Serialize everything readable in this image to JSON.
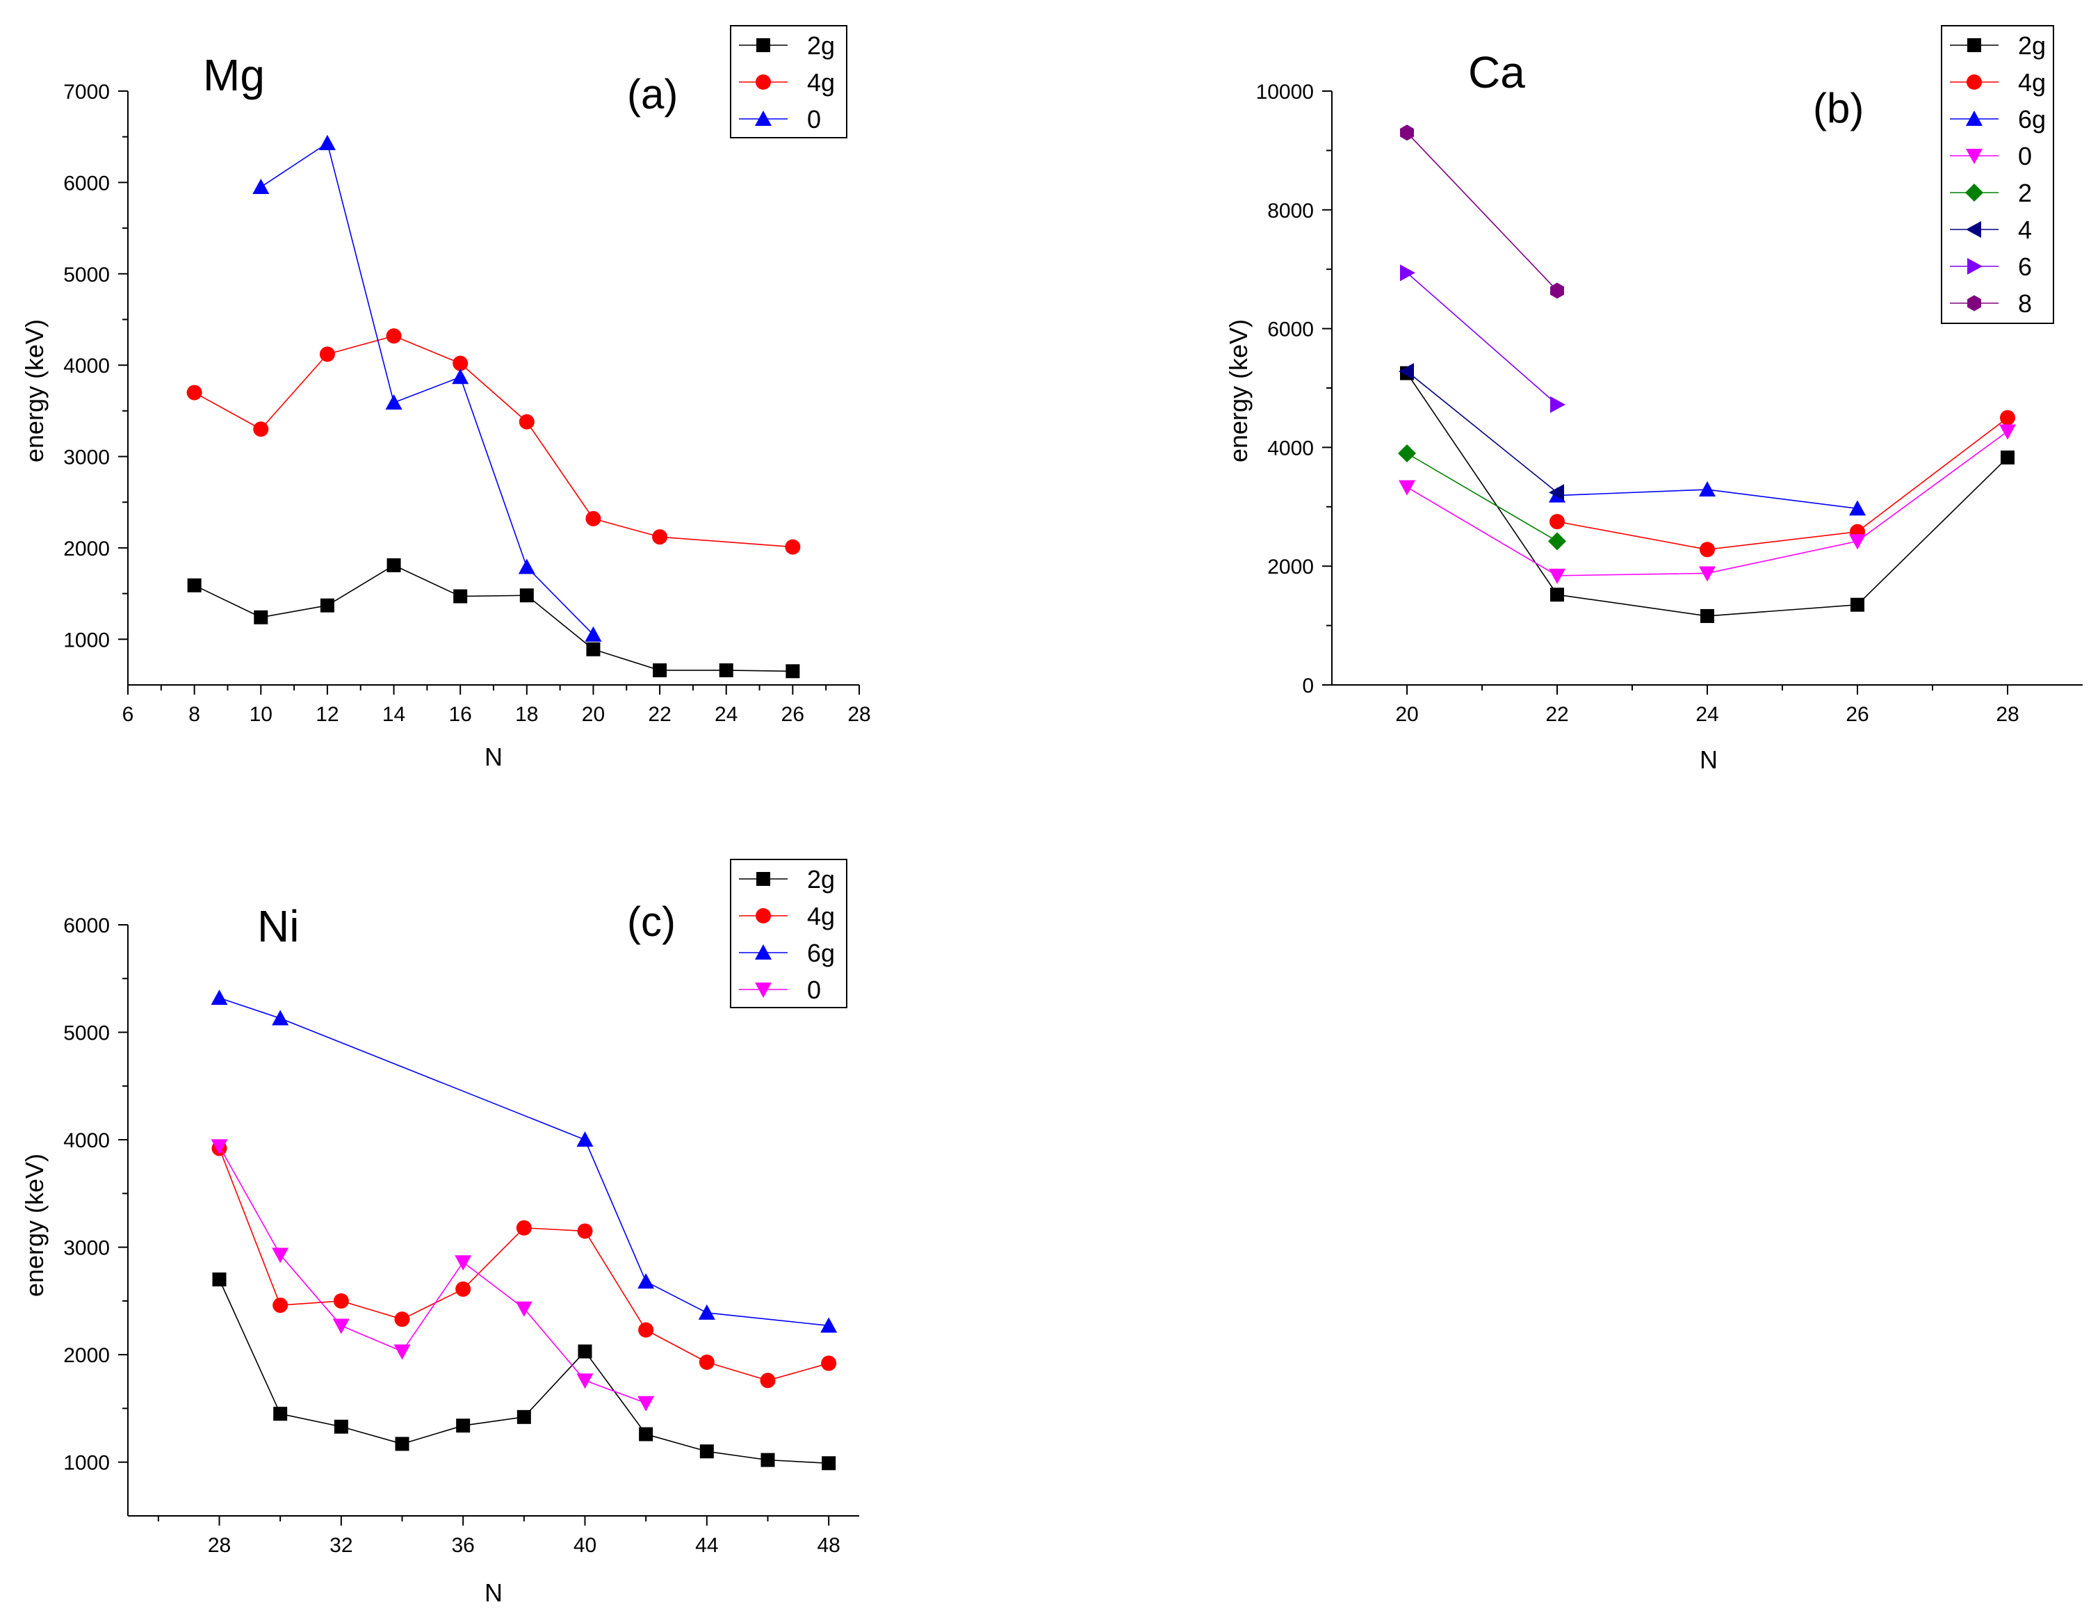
{
  "chart_data": [
    {
      "type": "line",
      "panel": "a",
      "title": "Mg",
      "panel_label": "(a)",
      "xlabel": "N",
      "ylabel": "energy (keV)",
      "xlim": [
        6,
        28
      ],
      "ylim": [
        500,
        7000
      ],
      "x_ticks": [
        6,
        8,
        10,
        12,
        14,
        16,
        18,
        20,
        22,
        24,
        26,
        28
      ],
      "y_ticks": [
        1000,
        2000,
        3000,
        4000,
        5000,
        6000,
        7000
      ],
      "legend_position": "top-right",
      "series": [
        {
          "name": "2g",
          "color": "#000000",
          "marker": "square",
          "points": [
            [
              8,
              1590
            ],
            [
              10,
              1240
            ],
            [
              12,
              1370
            ],
            [
              14,
              1810
            ],
            [
              16,
              1470
            ],
            [
              18,
              1480
            ],
            [
              20,
              890
            ],
            [
              22,
              660
            ],
            [
              24,
              660
            ],
            [
              26,
              650
            ]
          ]
        },
        {
          "name": "4g",
          "color": "#ff0000",
          "marker": "circle",
          "points": [
            [
              8,
              3700
            ],
            [
              10,
              3300
            ],
            [
              12,
              4120
            ],
            [
              14,
              4320
            ],
            [
              16,
              4020
            ],
            [
              18,
              3380
            ],
            [
              20,
              2320
            ],
            [
              22,
              2120
            ],
            [
              26,
              2010
            ]
          ]
        },
        {
          "name": "0",
          "color": "#0000ff",
          "marker": "triangle-up",
          "points": [
            [
              10,
              5950
            ],
            [
              12,
              6430
            ],
            [
              14,
              3590
            ],
            [
              16,
              3870
            ],
            [
              18,
              1790
            ],
            [
              20,
              1050
            ]
          ]
        }
      ]
    },
    {
      "type": "line",
      "panel": "b",
      "title": "Ca",
      "panel_label": "(b)",
      "xlabel": "N",
      "ylabel": "energy (keV)",
      "xlim": [
        19,
        29
      ],
      "ylim": [
        0,
        10000
      ],
      "x_ticks": [
        20,
        22,
        24,
        26,
        28
      ],
      "y_ticks": [
        0,
        2000,
        4000,
        6000,
        8000,
        10000
      ],
      "legend_position": "top-right",
      "series": [
        {
          "name": "2g",
          "color": "#000000",
          "marker": "square",
          "points": [
            [
              20,
              5250
            ],
            [
              22,
              1520
            ],
            [
              24,
              1160
            ],
            [
              26,
              1350
            ],
            [
              28,
              3830
            ]
          ]
        },
        {
          "name": "4g",
          "color": "#ff0000",
          "marker": "circle",
          "points": [
            [
              22,
              2750
            ],
            [
              24,
              2280
            ],
            [
              26,
              2580
            ],
            [
              28,
              4500
            ]
          ]
        },
        {
          "name": "6g",
          "color": "#0000ff",
          "marker": "triangle-up",
          "points": [
            [
              22,
              3190
            ],
            [
              24,
              3290
            ],
            [
              26,
              2970
            ]
          ]
        },
        {
          "name": "0",
          "color": "#ff00ff",
          "marker": "triangle-down",
          "points": [
            [
              20,
              3330
            ],
            [
              22,
              1840
            ],
            [
              24,
              1880
            ],
            [
              26,
              2420
            ],
            [
              28,
              4270
            ]
          ]
        },
        {
          "name": "2",
          "color": "#008000",
          "marker": "diamond",
          "points": [
            [
              20,
              3900
            ],
            [
              22,
              2420
            ]
          ]
        },
        {
          "name": "4",
          "color": "#000080",
          "marker": "triangle-left",
          "points": [
            [
              20,
              5280
            ],
            [
              22,
              3240
            ]
          ]
        },
        {
          "name": "6",
          "color": "#8000ff",
          "marker": "triangle-right",
          "points": [
            [
              20,
              6940
            ],
            [
              22,
              4720
            ]
          ]
        },
        {
          "name": "8",
          "color": "#800080",
          "marker": "hexagon",
          "points": [
            [
              20,
              9300
            ],
            [
              22,
              6640
            ]
          ]
        }
      ]
    },
    {
      "type": "line",
      "panel": "c",
      "title": "Ni",
      "panel_label": "(c)",
      "xlabel": "N",
      "ylabel": "energy (keV)",
      "xlim": [
        25,
        49
      ],
      "ylim": [
        500,
        6000
      ],
      "x_ticks": [
        28,
        32,
        36,
        40,
        44,
        48
      ],
      "x_minor_ticks": [
        26,
        30,
        34,
        38,
        42,
        46
      ],
      "y_ticks": [
        1000,
        2000,
        3000,
        4000,
        5000,
        6000
      ],
      "legend_position": "top-right",
      "series": [
        {
          "name": "2g",
          "color": "#000000",
          "marker": "square",
          "points": [
            [
              28,
              2700
            ],
            [
              30,
              1450
            ],
            [
              32,
              1330
            ],
            [
              34,
              1170
            ],
            [
              36,
              1340
            ],
            [
              38,
              1420
            ],
            [
              40,
              2030
            ],
            [
              42,
              1260
            ],
            [
              44,
              1100
            ],
            [
              46,
              1020
            ],
            [
              48,
              990
            ]
          ]
        },
        {
          "name": "4g",
          "color": "#ff0000",
          "marker": "circle",
          "points": [
            [
              28,
              3920
            ],
            [
              30,
              2460
            ],
            [
              32,
              2500
            ],
            [
              34,
              2330
            ],
            [
              36,
              2610
            ],
            [
              38,
              3180
            ],
            [
              40,
              3150
            ],
            [
              42,
              2230
            ],
            [
              44,
              1930
            ],
            [
              46,
              1760
            ],
            [
              48,
              1920
            ]
          ]
        },
        {
          "name": "6g",
          "color": "#0000ff",
          "marker": "triangle-up",
          "points": [
            [
              28,
              5320
            ],
            [
              30,
              5130
            ],
            [
              40,
              4000
            ],
            [
              42,
              2680
            ],
            [
              44,
              2390
            ],
            [
              48,
              2270
            ]
          ]
        },
        {
          "name": "0",
          "color": "#ff00ff",
          "marker": "triangle-down",
          "points": [
            [
              28,
              3940
            ],
            [
              30,
              2930
            ],
            [
              32,
              2270
            ],
            [
              34,
              2030
            ],
            [
              36,
              2860
            ],
            [
              38,
              2430
            ],
            [
              40,
              1760
            ],
            [
              42,
              1550
            ]
          ]
        }
      ]
    }
  ]
}
